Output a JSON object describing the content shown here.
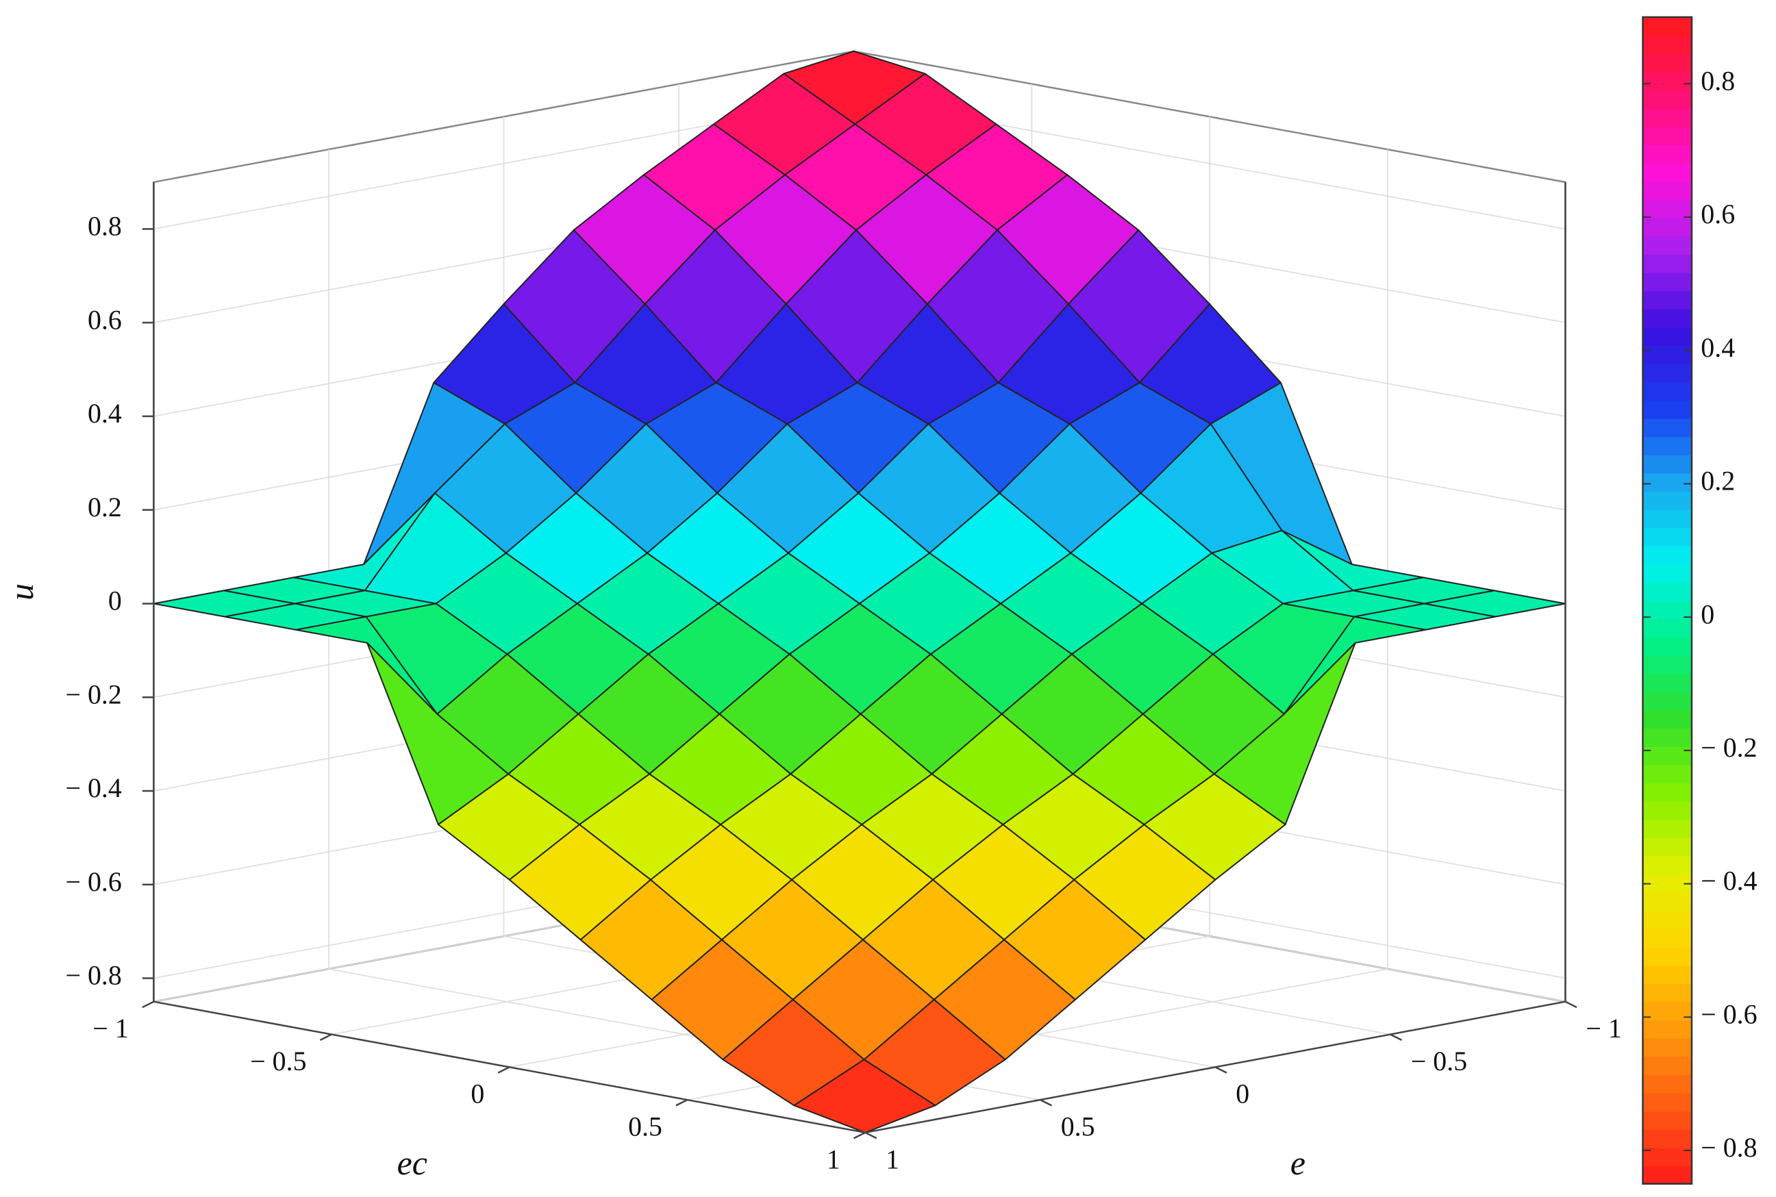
{
  "chart_data": {
    "type": "surface",
    "x_label": "e",
    "y_label": "ec",
    "z_label": "u",
    "x": [
      -1,
      -0.8,
      -0.6,
      -0.4,
      -0.2,
      0,
      0.2,
      0.4,
      0.6,
      0.8,
      1
    ],
    "y": [
      -1,
      -0.8,
      -0.6,
      -0.4,
      -0.2,
      0,
      0.2,
      0.4,
      0.6,
      0.8,
      1
    ],
    "z": [
      [
        0.9,
        0.88,
        0.8,
        0.72,
        0.63,
        0.5,
        0.36,
        0,
        0,
        0,
        0
      ],
      [
        0.88,
        0.8,
        0.72,
        0.63,
        0.5,
        0.36,
        0.3,
        0.18,
        0,
        0,
        0
      ],
      [
        0.8,
        0.72,
        0.63,
        0.5,
        0.36,
        0.3,
        0.18,
        0.08,
        0,
        0,
        0
      ],
      [
        0.72,
        0.63,
        0.5,
        0.36,
        0.3,
        0.18,
        0.08,
        0,
        -0.08,
        -0.18,
        0
      ],
      [
        0.63,
        0.5,
        0.36,
        0.3,
        0.18,
        0.08,
        0,
        -0.08,
        -0.18,
        -0.28,
        -0.36
      ],
      [
        0.5,
        0.36,
        0.3,
        0.18,
        0.08,
        0,
        -0.08,
        -0.18,
        -0.28,
        -0.36,
        -0.45
      ],
      [
        0.36,
        0.3,
        0.18,
        0.08,
        0,
        -0.08,
        -0.18,
        -0.28,
        -0.36,
        -0.45,
        -0.55
      ],
      [
        0,
        0.1,
        0.08,
        0,
        -0.08,
        -0.18,
        -0.28,
        -0.36,
        -0.45,
        -0.55,
        -0.65
      ],
      [
        0,
        0,
        0,
        -0.08,
        -0.18,
        -0.28,
        -0.36,
        -0.45,
        -0.55,
        -0.65,
        -0.75
      ],
      [
        0,
        0,
        0,
        -0.18,
        -0.28,
        -0.36,
        -0.45,
        -0.55,
        -0.65,
        -0.75,
        -0.82
      ],
      [
        0,
        0,
        0,
        0,
        -0.36,
        -0.45,
        -0.55,
        -0.65,
        -0.75,
        -0.82,
        -0.85
      ]
    ],
    "xlim": [
      -1,
      1
    ],
    "ylim": [
      -1,
      1
    ],
    "zlim": [
      -0.85,
      0.9
    ],
    "xticks": [
      {
        "value": -1,
        "label": "− 1"
      },
      {
        "value": -0.5,
        "label": "− 0.5"
      },
      0,
      0.5,
      1
    ],
    "yticks": [
      {
        "value": -1,
        "label": "− 1"
      },
      {
        "value": -0.5,
        "label": "− 0.5"
      },
      0,
      0.5,
      1
    ],
    "zticks": [
      {
        "value": -0.8,
        "label": "− 0.8"
      },
      {
        "value": -0.6,
        "label": "− 0.6"
      },
      {
        "value": -0.4,
        "label": "− 0.4"
      },
      {
        "value": -0.2,
        "label": "− 0.2"
      },
      0,
      0.2,
      0.4,
      0.6,
      0.8
    ],
    "colormap": [
      "#ff1a1a",
      "#ff5a14",
      "#ff9a0a",
      "#ffd400",
      "#e4f000",
      "#86f000",
      "#2ee02e",
      "#00f08c",
      "#00f0f0",
      "#1aa8f0",
      "#1a3cf0",
      "#3a10e0",
      "#a820f0",
      "#ff10d8",
      "#ff1070",
      "#ff1a1a"
    ],
    "colorbar": {
      "lim": [
        -0.85,
        0.9
      ],
      "ticks": [
        {
          "value": -0.8,
          "label": "− 0.8"
        },
        {
          "value": -0.6,
          "label": "− 0.6"
        },
        {
          "value": -0.4,
          "label": "− 0.4"
        },
        {
          "value": -0.2,
          "label": "− 0.2"
        },
        0,
        0.2,
        0.4,
        0.6,
        0.8
      ]
    },
    "grid": true
  }
}
